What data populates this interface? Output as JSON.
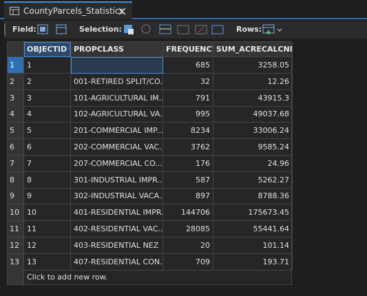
{
  "tab": {
    "title": "CountyParcels_Statistics"
  },
  "toolbar": {
    "field_label": "Field:",
    "selection_label": "Selection:",
    "rows_label": "Rows:"
  },
  "table": {
    "columns": [
      "OBJECTID *",
      "PROPCLASS",
      "FREQUENCY",
      "SUM_ACRECALCNM"
    ],
    "rows": [
      {
        "row": 1,
        "objectid": 1,
        "propclass": null,
        "frequency": 685,
        "sum": 3258.05
      },
      {
        "row": 2,
        "objectid": 2,
        "propclass": "001-RETIRED SPLIT/CO...",
        "frequency": 32,
        "sum": 12.26
      },
      {
        "row": 3,
        "objectid": 3,
        "propclass": "101-AGRICULTURAL IM...",
        "frequency": 791,
        "sum": 43915.3
      },
      {
        "row": 4,
        "objectid": 4,
        "propclass": "102-AGRICULTURAL VA...",
        "frequency": 995,
        "sum": 49037.68
      },
      {
        "row": 5,
        "objectid": 5,
        "propclass": "201-COMMERCIAL IMP...",
        "frequency": 8234,
        "sum": 33006.24
      },
      {
        "row": 6,
        "objectid": 6,
        "propclass": "202-COMMERCIAL VAC...",
        "frequency": 3762,
        "sum": 9585.24
      },
      {
        "row": 7,
        "objectid": 7,
        "propclass": "207-COMMERCIAL CO...",
        "frequency": 176,
        "sum": 24.96
      },
      {
        "row": 8,
        "objectid": 8,
        "propclass": "301-INDUSTRIAL IMPR...",
        "frequency": 587,
        "sum": 5262.27
      },
      {
        "row": 9,
        "objectid": 9,
        "propclass": "302-INDUSTRIAL VACA...",
        "frequency": 897,
        "sum": 8788.36
      },
      {
        "row": 10,
        "objectid": 10,
        "propclass": "401-RESIDENTIAL IMPR...",
        "frequency": 144706,
        "sum": 175673.45
      },
      {
        "row": 11,
        "objectid": 11,
        "propclass": "402-RESIDENTIAL VAC...",
        "frequency": 28085,
        "sum": 55441.64
      },
      {
        "row": 12,
        "objectid": 12,
        "propclass": "403-RESIDENTIAL NEZ",
        "frequency": 20,
        "sum": 101.14
      },
      {
        "row": 13,
        "objectid": 13,
        "propclass": "407-RESIDENTIAL CON...",
        "frequency": 709,
        "sum": 193.71
      }
    ],
    "add_row_hint": "Click to add new row."
  }
}
